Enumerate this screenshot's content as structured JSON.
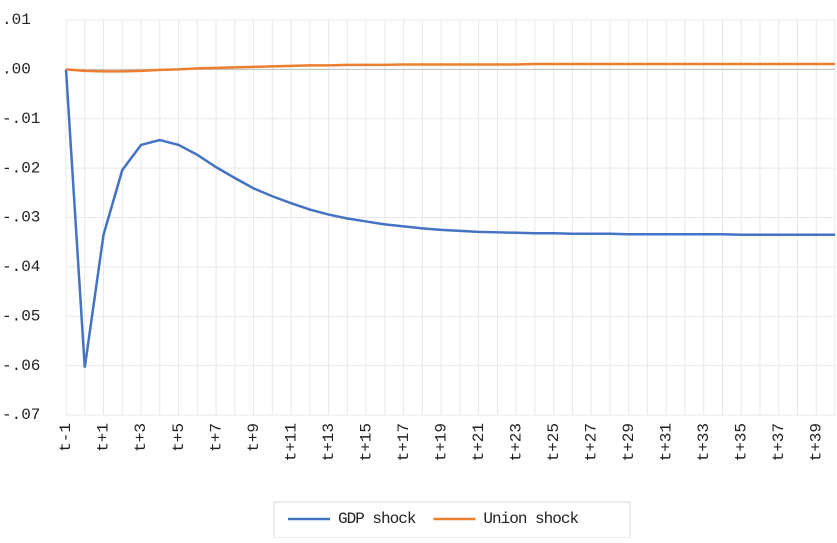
{
  "chart_data": {
    "type": "line",
    "categories": [
      "t-1",
      null,
      "t+1",
      null,
      "t+3",
      null,
      "t+5",
      null,
      "t+7",
      null,
      "t+9",
      null,
      "t+11",
      null,
      "t+13",
      null,
      "t+15",
      null,
      "t+17",
      null,
      "t+19",
      null,
      "t+21",
      null,
      "t+23",
      null,
      "t+25",
      null,
      "t+27",
      null,
      "t+29",
      null,
      "t+31",
      null,
      "t+33",
      null,
      "t+35",
      null,
      "t+37",
      null,
      "t+39",
      null
    ],
    "series": [
      {
        "name": "GDP shock",
        "color": "#4472c4",
        "values": [
          0,
          -0.0604,
          -0.0335,
          -0.0204,
          -0.0153,
          -0.0143,
          -0.0153,
          -0.0173,
          -0.0198,
          -0.022,
          -0.0241,
          -0.0257,
          -0.0271,
          -0.0284,
          -0.0294,
          -0.0302,
          -0.0308,
          -0.0314,
          -0.0318,
          -0.0322,
          -0.0325,
          -0.0327,
          -0.0329,
          -0.033,
          -0.0331,
          -0.0332,
          -0.0332,
          -0.0333,
          -0.0333,
          -0.0333,
          -0.0334,
          -0.0334,
          -0.0334,
          -0.0334,
          -0.0334,
          -0.0334,
          -0.0335,
          -0.0335,
          -0.0335,
          -0.0335,
          -0.0335,
          -0.0335
        ]
      },
      {
        "name": "Union shock",
        "color": "#ed7d31",
        "values": [
          0,
          -0.0003,
          -0.0004,
          -0.0004,
          -0.0003,
          -0.0001,
          0,
          0.0002,
          0.0003,
          0.0004,
          0.0005,
          0.0006,
          0.0007,
          0.0008,
          0.0008,
          0.0009,
          0.0009,
          0.0009,
          0.001,
          0.001,
          0.001,
          0.001,
          0.001,
          0.001,
          0.001,
          0.0011,
          0.0011,
          0.0011,
          0.0011,
          0.0011,
          0.0011,
          0.0011,
          0.0011,
          0.0011,
          0.0011,
          0.0011,
          0.0011,
          0.0011,
          0.0011,
          0.0011,
          0.0011,
          0.0011
        ]
      }
    ],
    "ylim": [
      -0.07,
      0.01
    ],
    "yticks": [
      {
        "value": 0.01,
        "label": ".01"
      },
      {
        "value": 0,
        "label": ".00"
      },
      {
        "value": -0.01,
        "label": "-.01"
      },
      {
        "value": -0.02,
        "label": "-.02"
      },
      {
        "value": -0.03,
        "label": "-.03"
      },
      {
        "value": -0.04,
        "label": "-.04"
      },
      {
        "value": -0.05,
        "label": "-.05"
      },
      {
        "value": -0.06,
        "label": "-.06"
      },
      {
        "value": -0.07,
        "label": "-.07"
      }
    ],
    "grid": true,
    "legend": "bottom"
  }
}
